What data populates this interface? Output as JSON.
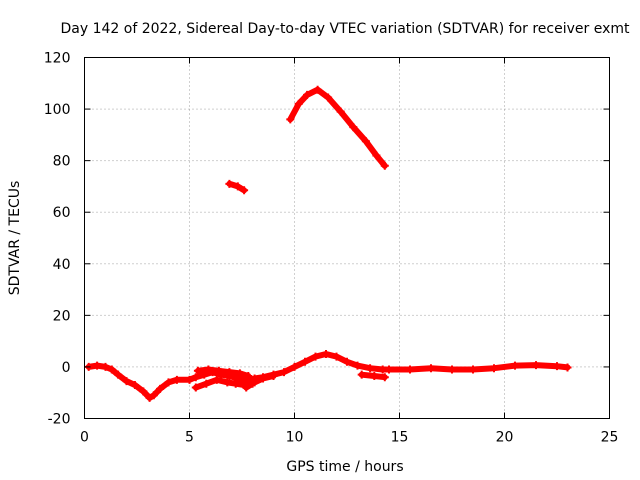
{
  "chart_data": {
    "type": "scatter",
    "title": "Day 142 of 2022, Sidereal Day-to-day VTEC variation (SDTVAR) for receiver exmt",
    "xlabel": "GPS time / hours",
    "ylabel": "SDTVAR / TECUs",
    "xlim": [
      0,
      25
    ],
    "ylim": [
      -20,
      120
    ],
    "xticks": [
      0,
      5,
      10,
      15,
      20,
      25
    ],
    "yticks": [
      -20,
      0,
      20,
      40,
      60,
      80,
      100,
      120
    ],
    "grid": true,
    "legend": "none",
    "color": "#ff0000",
    "series": [
      {
        "name": "segment-1",
        "points": [
          [
            0.2,
            0
          ],
          [
            0.6,
            0.5
          ],
          [
            1,
            0
          ],
          [
            1.3,
            -1
          ],
          [
            1.6,
            -3
          ],
          [
            2,
            -5.5
          ],
          [
            2.4,
            -7
          ],
          [
            2.8,
            -9.5
          ],
          [
            3.1,
            -12
          ],
          [
            3.3,
            -11
          ],
          [
            3.6,
            -8.5
          ],
          [
            4,
            -6
          ],
          [
            4.4,
            -5
          ],
          [
            5,
            -5
          ],
          [
            5.3,
            -4
          ],
          [
            5.7,
            -3
          ],
          [
            6.1,
            -2
          ],
          [
            6.5,
            -3
          ],
          [
            6.9,
            -3.5
          ],
          [
            7.3,
            -4.5
          ],
          [
            7.7,
            -5.5
          ],
          [
            8.1,
            -4.5
          ],
          [
            8.5,
            -4
          ],
          [
            9,
            -3
          ],
          [
            9.5,
            -2
          ],
          [
            10,
            0
          ],
          [
            10.5,
            2
          ],
          [
            11,
            4
          ],
          [
            11.5,
            5
          ],
          [
            12,
            4
          ],
          [
            12.5,
            2
          ],
          [
            13,
            0.5
          ],
          [
            13.6,
            -0.5
          ],
          [
            14.2,
            -1
          ],
          [
            14.5,
            -1
          ]
        ]
      },
      {
        "name": "segment-2",
        "points": [
          [
            5.3,
            -8
          ],
          [
            5.8,
            -6.5
          ],
          [
            6.3,
            -5
          ],
          [
            6.8,
            -6
          ],
          [
            7.2,
            -6.5
          ],
          [
            7.6,
            -7
          ],
          [
            8,
            -6.5
          ]
        ]
      },
      {
        "name": "segment-3",
        "points": [
          [
            5.4,
            -1.5
          ],
          [
            5.9,
            -1
          ],
          [
            6.4,
            -1.5
          ],
          [
            6.9,
            -2
          ],
          [
            7.4,
            -2.5
          ],
          [
            7.8,
            -3.5
          ]
        ]
      },
      {
        "name": "segment-4",
        "points": [
          [
            7.7,
            -8
          ],
          [
            8.1,
            -6
          ],
          [
            8.5,
            -4.5
          ],
          [
            9,
            -3.5
          ]
        ]
      },
      {
        "name": "segment-5",
        "points": [
          [
            13.2,
            -3
          ],
          [
            13.8,
            -3.5
          ],
          [
            14.3,
            -4
          ]
        ]
      },
      {
        "name": "segment-6",
        "points": [
          [
            14.5,
            -1
          ],
          [
            15.5,
            -1
          ],
          [
            16.5,
            -0.5
          ],
          [
            17.5,
            -1
          ],
          [
            18.5,
            -1
          ],
          [
            19.5,
            -0.5
          ],
          [
            20.5,
            0.5
          ],
          [
            21.5,
            0.7
          ],
          [
            22.5,
            0.3
          ],
          [
            23,
            -0.2
          ]
        ]
      },
      {
        "name": "segment-7",
        "points": [
          [
            6.9,
            71
          ],
          [
            7.3,
            70
          ],
          [
            7.6,
            68.5
          ]
        ]
      },
      {
        "name": "segment-8",
        "points": [
          [
            9.8,
            96
          ],
          [
            10.2,
            102
          ],
          [
            10.6,
            105.5
          ],
          [
            11.1,
            107.5
          ],
          [
            11.6,
            104.5
          ],
          [
            12.2,
            99
          ],
          [
            12.8,
            93
          ],
          [
            13.4,
            87.5
          ],
          [
            13.9,
            82
          ],
          [
            14.3,
            78
          ]
        ]
      }
    ]
  }
}
